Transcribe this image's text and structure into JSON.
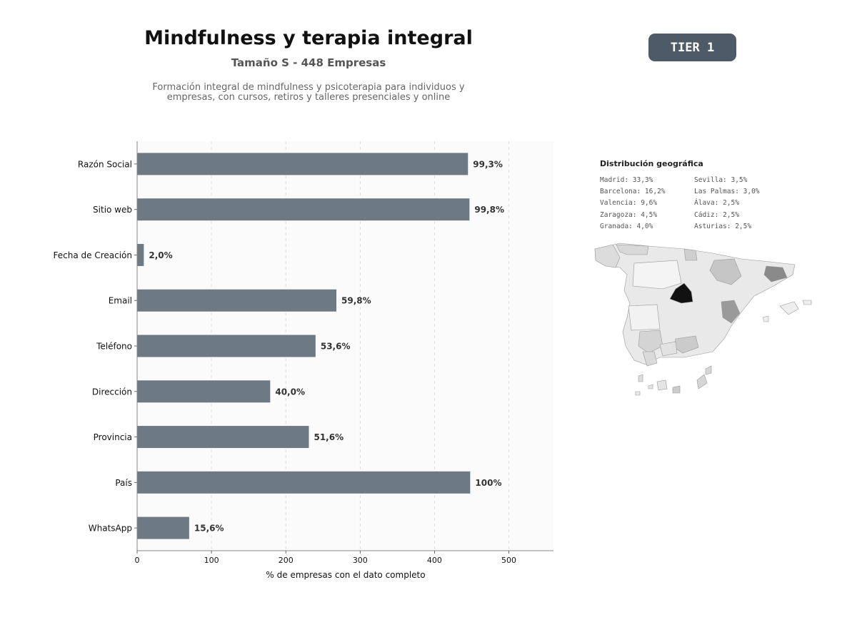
{
  "header": {
    "title": "Mindfulness y terapia integral",
    "subtitle": "Tamaño S - 448 Empresas",
    "description_line1": "Formación integral de mindfulness y psicoterapia para individuos y",
    "description_line2": "empresas, con cursos, retiros y talleres presenciales y online",
    "tier_badge": "TIER 1"
  },
  "colors": {
    "bar": "#6e7a83",
    "tier_bg": "#4d5a67",
    "plot_bg": "#fbfbfb"
  },
  "chart_data": {
    "type": "bar",
    "orientation": "horizontal",
    "categories": [
      "Razón Social",
      "Sitio web",
      "Fecha de Creación",
      "Email",
      "Teléfono",
      "Dirección",
      "Provincia",
      "País",
      "WhatsApp"
    ],
    "values": [
      445,
      447,
      9,
      268,
      240,
      179,
      231,
      448,
      70
    ],
    "data_labels": [
      "99,3%",
      "99,8%",
      "2,0%",
      "59,8%",
      "53,6%",
      "40,0%",
      "51,6%",
      "100%",
      "15,6%"
    ],
    "xlabel": "% de empresas con el dato completo",
    "ylabel": "",
    "xlim": [
      0,
      560
    ],
    "xticks": [
      0,
      100,
      200,
      300,
      400,
      500
    ],
    "grid": "vertical dashed"
  },
  "geo": {
    "title": "Distribución geográfica",
    "col1": [
      "Madrid: 33,3%",
      "Barcelona: 16,2%",
      "Valencia: 9,6%",
      "Zaragoza: 4,5%",
      "Granada: 4,0%"
    ],
    "col2": [
      "Sevilla: 3,5%",
      "Las Palmas: 3,0%",
      "Álava: 2,5%",
      "Cádiz: 2,5%",
      "Asturias: 2,5%"
    ]
  }
}
